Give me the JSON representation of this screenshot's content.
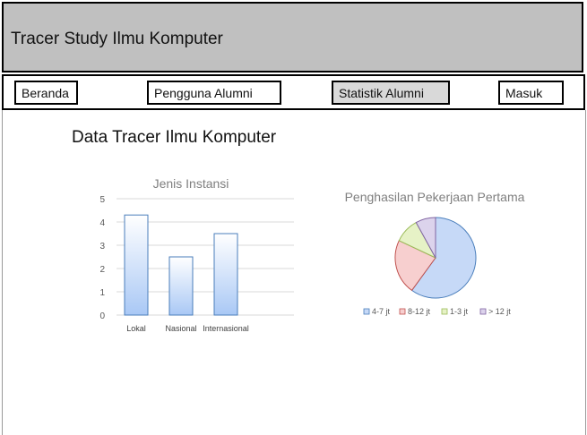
{
  "header": {
    "title": "Tracer Study Ilmu Komputer"
  },
  "nav": {
    "items": [
      {
        "label": "Beranda"
      },
      {
        "label": "Pengguna  Alumni"
      },
      {
        "label": "Statistik Alumni"
      },
      {
        "label": "Masuk"
      }
    ],
    "active_index": 2
  },
  "main": {
    "title": "Data Tracer Ilmu Komputer"
  },
  "chart_data": [
    {
      "type": "bar",
      "title": "Jenis Instansi",
      "categories": [
        "Lokal",
        "Nasional",
        "Internasional"
      ],
      "values": [
        4.3,
        2.5,
        3.5
      ],
      "ylim": [
        0,
        5
      ],
      "yticks": [
        "0",
        "1",
        "2",
        "3",
        "4",
        "5"
      ],
      "grid": true,
      "bar_color": "#a9c8f5"
    },
    {
      "type": "pie",
      "title": "Penghasilan  Pekerjaan Pertama",
      "categories": [
        "4-7 jt",
        "8-12 jt",
        "1-3 jt",
        "> 12 jt"
      ],
      "values": [
        60,
        22,
        10,
        8
      ],
      "colors": [
        "#c6d9f7",
        "#f7cfcf",
        "#e6f2c6",
        "#dcd3ec"
      ],
      "legend": "bottom"
    }
  ]
}
